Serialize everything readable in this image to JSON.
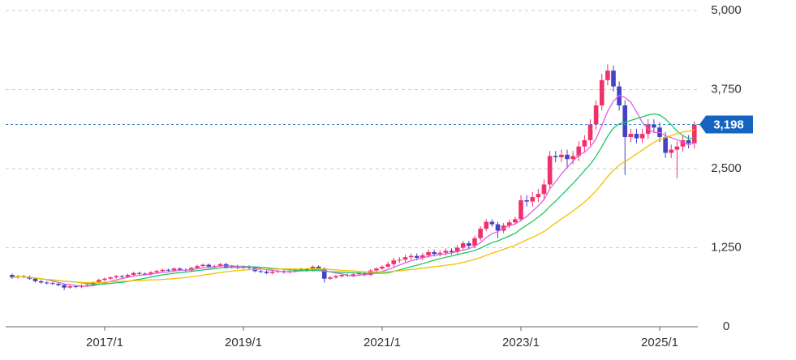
{
  "chart_data": {
    "type": "candlestick",
    "categories": [
      null,
      null,
      null,
      null,
      null,
      null,
      null,
      null,
      null,
      null,
      null,
      null,
      null,
      null,
      null,
      null,
      "2017/1",
      null,
      null,
      null,
      null,
      null,
      null,
      null,
      null,
      null,
      null,
      null,
      null,
      null,
      null,
      null,
      null,
      null,
      null,
      null,
      null,
      null,
      null,
      null,
      "2019/1",
      null,
      null,
      null,
      null,
      null,
      null,
      null,
      null,
      null,
      null,
      null,
      null,
      null,
      null,
      null,
      null,
      null,
      null,
      null,
      null,
      null,
      null,
      null,
      "2021/1",
      null,
      null,
      null,
      null,
      null,
      null,
      null,
      null,
      null,
      null,
      null,
      null,
      null,
      null,
      null,
      null,
      null,
      null,
      null,
      null,
      null,
      null,
      null,
      "2023/1",
      null,
      null,
      null,
      null,
      null,
      null,
      null,
      null,
      null,
      null,
      null,
      null,
      null,
      null,
      null,
      null,
      null,
      null,
      null,
      null,
      null,
      null,
      null,
      "2025/1",
      null,
      null,
      null,
      null,
      null,
      null
    ],
    "open": [
      820,
      780,
      800,
      790,
      760,
      720,
      700,
      690,
      680,
      660,
      620,
      640,
      630,
      650,
      660,
      700,
      740,
      760,
      780,
      800,
      790,
      820,
      850,
      840,
      830,
      860,
      880,
      900,
      890,
      920,
      900,
      890,
      930,
      960,
      980,
      950,
      960,
      990,
      940,
      960,
      930,
      950,
      930,
      880,
      870,
      850,
      870,
      880,
      860,
      880,
      900,
      910,
      890,
      950,
      920,
      760,
      780,
      800,
      820,
      810,
      830,
      850,
      820,
      890,
      920,
      950,
      990,
      1050,
      1060,
      1100,
      1120,
      1090,
      1130,
      1180,
      1150,
      1170,
      1200,
      1180,
      1250,
      1320,
      1280,
      1400,
      1550,
      1660,
      1620,
      1520,
      1600,
      1650,
      1700,
      2000,
      1980,
      2050,
      2100,
      2250,
      2700,
      2680,
      2720,
      2650,
      2700,
      2850,
      2950,
      3200,
      3500,
      3900,
      4050,
      3800,
      3500,
      3000,
      3050,
      2980,
      3050,
      3200,
      3150,
      3000,
      2750,
      2800,
      2850,
      2950,
      2900
    ],
    "high": [
      840,
      820,
      820,
      810,
      780,
      740,
      720,
      710,
      700,
      680,
      660,
      660,
      670,
      680,
      720,
      760,
      780,
      800,
      820,
      820,
      840,
      870,
      870,
      860,
      880,
      900,
      920,
      920,
      940,
      940,
      920,
      950,
      980,
      1000,
      1000,
      980,
      1010,
      1010,
      980,
      980,
      970,
      970,
      950,
      900,
      890,
      890,
      900,
      900,
      900,
      920,
      930,
      930,
      970,
      970,
      940,
      800,
      820,
      840,
      840,
      850,
      870,
      870,
      910,
      940,
      970,
      1030,
      1090,
      1100,
      1140,
      1160,
      1160,
      1170,
      1220,
      1220,
      1210,
      1240,
      1240,
      1290,
      1360,
      1360,
      1440,
      1590,
      1700,
      1700,
      1660,
      1640,
      1690,
      1740,
      2080,
      2080,
      2130,
      2180,
      2330,
      2780,
      2780,
      2800,
      2800,
      2780,
      2930,
      3030,
      3280,
      3580,
      4000,
      4150,
      4130,
      3880,
      3580,
      3130,
      3130,
      3130,
      3280,
      3280,
      3230,
      3080,
      2880,
      2930,
      3030,
      3030,
      3250
    ],
    "low": [
      760,
      760,
      770,
      740,
      700,
      680,
      670,
      660,
      640,
      580,
      600,
      610,
      610,
      630,
      640,
      680,
      720,
      740,
      760,
      770,
      770,
      800,
      820,
      810,
      810,
      840,
      860,
      870,
      870,
      880,
      870,
      870,
      910,
      940,
      930,
      930,
      940,
      920,
      920,
      910,
      910,
      910,
      860,
      850,
      830,
      830,
      850,
      840,
      840,
      860,
      880,
      870,
      870,
      900,
      700,
      740,
      760,
      780,
      790,
      790,
      810,
      800,
      800,
      870,
      900,
      930,
      950,
      1010,
      1020,
      1060,
      1050,
      1050,
      1090,
      1110,
      1110,
      1130,
      1140,
      1140,
      1210,
      1240,
      1240,
      1360,
      1510,
      1580,
      1400,
      1480,
      1560,
      1610,
      1660,
      1900,
      1900,
      1970,
      2020,
      2170,
      2600,
      2600,
      2500,
      2570,
      2620,
      2770,
      2870,
      3120,
      3420,
      3820,
      3720,
      3420,
      2400,
      2920,
      2900,
      2900,
      2970,
      3070,
      2920,
      2670,
      2670,
      2350,
      2770,
      2820,
      2820
    ],
    "close": [
      780,
      800,
      790,
      760,
      720,
      700,
      690,
      680,
      660,
      620,
      640,
      630,
      650,
      660,
      700,
      740,
      760,
      780,
      800,
      790,
      820,
      850,
      840,
      830,
      860,
      880,
      900,
      890,
      920,
      900,
      890,
      930,
      960,
      980,
      950,
      960,
      990,
      940,
      960,
      930,
      950,
      930,
      880,
      870,
      850,
      870,
      880,
      860,
      880,
      900,
      910,
      890,
      950,
      920,
      760,
      780,
      800,
      820,
      810,
      830,
      850,
      820,
      890,
      920,
      950,
      990,
      1050,
      1060,
      1100,
      1120,
      1090,
      1130,
      1180,
      1150,
      1170,
      1200,
      1180,
      1250,
      1320,
      1280,
      1400,
      1550,
      1660,
      1620,
      1520,
      1600,
      1650,
      1700,
      2000,
      1980,
      2050,
      2100,
      2250,
      2700,
      2680,
      2720,
      2650,
      2700,
      2850,
      2950,
      3200,
      3500,
      3900,
      4050,
      3800,
      3500,
      3000,
      3050,
      2980,
      3050,
      3200,
      3150,
      3000,
      2750,
      2800,
      2850,
      2950,
      2900,
      3198
    ],
    "up_color": "#f0306a",
    "down_color": "#4343c4",
    "line_colors": [
      "#e060e0",
      "#1ec864",
      "#f2c200"
    ],
    "ylim": [
      0,
      5000
    ],
    "yticks": [
      0,
      {
        "value": 1250,
        "label": "1,250"
      },
      {
        "value": 2500,
        "label": "2,500"
      },
      {
        "value": 3750,
        "label": "3,750"
      },
      {
        "value": 5000,
        "label": "5,000"
      }
    ],
    "last_price": {
      "value": 3198,
      "label": "3,198"
    },
    "grid": true
  }
}
